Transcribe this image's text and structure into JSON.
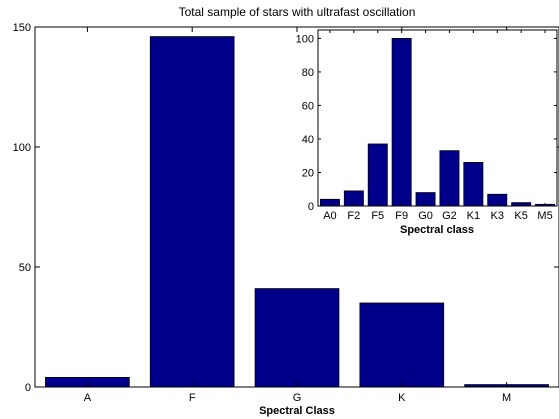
{
  "chart_data": [
    {
      "type": "bar",
      "title": "Total sample of stars with ultrafast oscillation",
      "xlabel": "Spectral Class",
      "ylabel": "",
      "categories": [
        "A",
        "F",
        "G",
        "K",
        "M"
      ],
      "values": [
        4,
        146,
        41,
        35,
        1
      ],
      "ylim": [
        0,
        150
      ],
      "yticks": [
        0,
        50,
        100,
        150
      ],
      "bar_color": "#00008B",
      "grid": false
    },
    {
      "type": "bar",
      "title": "",
      "xlabel": "Spectral class",
      "ylabel": "",
      "categories": [
        "A0",
        "F2",
        "F5",
        "F9",
        "G0",
        "G2",
        "K1",
        "K3",
        "K5",
        "M5"
      ],
      "values": [
        4,
        9,
        37,
        100,
        8,
        33,
        26,
        7,
        2,
        1
      ],
      "ylim": [
        0,
        105
      ],
      "yticks": [
        0,
        20,
        40,
        60,
        80,
        100
      ],
      "bar_color": "#00008B",
      "grid": false,
      "placement": "inset-top-right"
    }
  ]
}
